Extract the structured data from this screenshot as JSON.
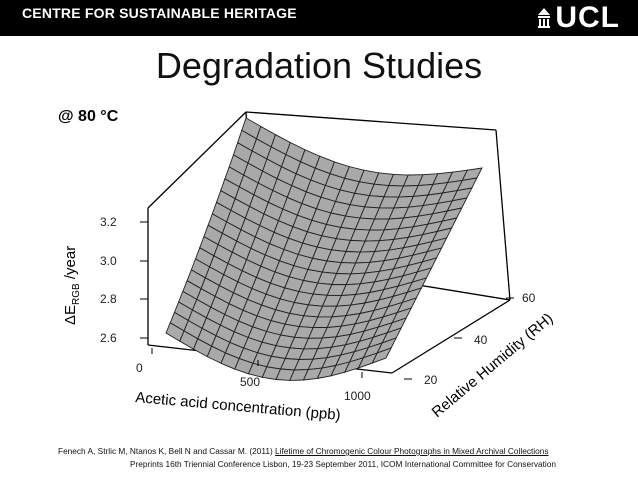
{
  "header": {
    "org_title": "CENTRE FOR SUSTAINABLE HERITAGE",
    "logo_text": "UCL"
  },
  "slide": {
    "title": "Degradation Studies",
    "temperature_label": "@ 80 °C"
  },
  "plot": {
    "z_axis_label_main": "ΔE",
    "z_axis_label_sub": "RGB",
    "z_axis_label_unit": " /year",
    "x_axis_label": "Acetic acid concentration (ppb)",
    "y_axis_label": "Relative Humidity (RH)",
    "z_ticks": [
      "3.2",
      "3.0",
      "2.8",
      "2.6"
    ],
    "x_ticks": [
      "0",
      "500",
      "1000"
    ],
    "y_ticks": [
      "60",
      "40",
      "20"
    ]
  },
  "footer": {
    "line1_prefix": "Fenech A, Strlic M, Ntanos K, Bell N and Cassar M. (2011) ",
    "line1_link": "Lifetime of Chromogenic Colour Photographs in Mixed Archival Collections",
    "line2": "Preprints 16th Triennial Conference Lisbon, 19-23 September 2011, ICOM International Committee for Conservation"
  },
  "colors": {
    "header_bg": "#000000",
    "surface_fill": "#a9a9a9",
    "mesh_line": "#222222"
  }
}
